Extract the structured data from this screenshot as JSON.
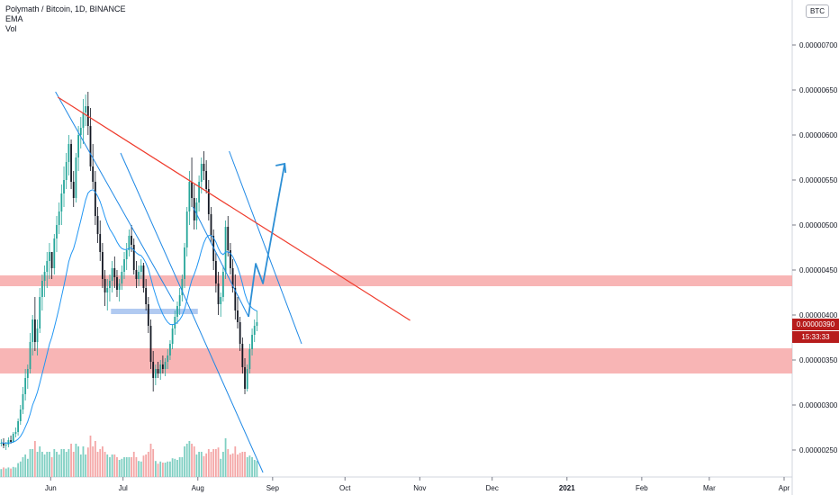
{
  "header": {
    "title": "Polymath / Bitcoin, 1D, BINANCE",
    "indicators": [
      "EMA",
      "Vol"
    ],
    "currency": "BTC"
  },
  "current_price": {
    "price": "0.00000390",
    "countdown": "15:33:33",
    "color": "#b71c1c"
  },
  "colors": {
    "up": "#26a69a",
    "down": "#131722",
    "vol_up": "#7fcfc2",
    "vol_down": "#f4a6a6",
    "ema": "#2196f3",
    "channel": "#1e88e5",
    "trendline": "#ef3b2c",
    "zone": "#f7a8a8",
    "support": "#a9c4ef",
    "arrow": "#2d8fd5"
  },
  "chart_data": {
    "type": "candlestick",
    "title": "Polymath / Bitcoin, 1D, BINANCE",
    "y_axis": {
      "ticks": [
        "0.00000250",
        "0.00000300",
        "0.00000350",
        "0.00000400",
        "0.00000450",
        "0.00000500",
        "0.00000550",
        "0.00000600",
        "0.00000650",
        "0.00000700"
      ],
      "tick_values": [
        250,
        300,
        350,
        400,
        450,
        500,
        550,
        600,
        650,
        700
      ],
      "unit_scale": "1e-8 BTC",
      "range": [
        225,
        745
      ]
    },
    "x_axis": {
      "ticks": [
        "Jun",
        "Jul",
        "Aug",
        "Sep",
        "Oct",
        "Nov",
        "Dec",
        "2021",
        "Feb",
        "Mar",
        "Apr"
      ],
      "tick_day": [
        21,
        51,
        82,
        113,
        143,
        174,
        204,
        235,
        266,
        294,
        325
      ]
    },
    "candles_ohlc": [
      [
        257,
        262,
        254,
        258
      ],
      [
        258,
        263,
        252,
        255
      ],
      [
        255,
        259,
        250,
        256
      ],
      [
        256,
        264,
        253,
        261
      ],
      [
        261,
        266,
        257,
        259
      ],
      [
        259,
        270,
        258,
        268
      ],
      [
        268,
        275,
        264,
        270
      ],
      [
        270,
        285,
        266,
        282
      ],
      [
        282,
        300,
        278,
        295
      ],
      [
        295,
        320,
        290,
        312
      ],
      [
        312,
        340,
        305,
        330
      ],
      [
        330,
        345,
        318,
        340
      ],
      [
        340,
        380,
        335,
        370
      ],
      [
        370,
        400,
        355,
        395
      ],
      [
        395,
        420,
        360,
        370
      ],
      [
        370,
        395,
        355,
        385
      ],
      [
        385,
        430,
        380,
        420
      ],
      [
        420,
        445,
        405,
        438
      ],
      [
        438,
        455,
        420,
        448
      ],
      [
        448,
        470,
        430,
        460
      ],
      [
        460,
        480,
        440,
        470
      ],
      [
        470,
        470,
        440,
        452
      ],
      [
        452,
        490,
        445,
        485
      ],
      [
        485,
        510,
        470,
        500
      ],
      [
        500,
        525,
        490,
        515
      ],
      [
        515,
        545,
        500,
        535
      ],
      [
        535,
        565,
        520,
        550
      ],
      [
        550,
        580,
        540,
        570
      ],
      [
        570,
        600,
        555,
        590
      ],
      [
        590,
        595,
        540,
        548
      ],
      [
        548,
        560,
        520,
        530
      ],
      [
        530,
        580,
        525,
        575
      ],
      [
        575,
        610,
        560,
        600
      ],
      [
        600,
        620,
        585,
        608
      ],
      [
        608,
        640,
        590,
        625
      ],
      [
        625,
        645,
        610,
        632
      ],
      [
        632,
        648,
        600,
        610
      ],
      [
        610,
        630,
        560,
        565
      ],
      [
        565,
        590,
        540,
        548
      ],
      [
        548,
        560,
        500,
        510
      ],
      [
        510,
        520,
        480,
        490
      ],
      [
        490,
        505,
        460,
        470
      ],
      [
        470,
        480,
        430,
        440
      ],
      [
        440,
        450,
        410,
        425
      ],
      [
        425,
        440,
        405,
        430
      ],
      [
        430,
        445,
        415,
        438
      ],
      [
        438,
        460,
        425,
        452
      ],
      [
        452,
        465,
        430,
        442
      ],
      [
        442,
        450,
        420,
        428
      ],
      [
        428,
        440,
        415,
        435
      ],
      [
        435,
        455,
        428,
        448
      ],
      [
        448,
        470,
        440,
        462
      ],
      [
        462,
        480,
        450,
        472
      ],
      [
        472,
        495,
        465,
        488
      ],
      [
        488,
        500,
        470,
        478
      ],
      [
        478,
        485,
        445,
        450
      ],
      [
        450,
        460,
        430,
        440
      ],
      [
        440,
        455,
        432,
        448
      ],
      [
        448,
        462,
        440,
        455
      ],
      [
        455,
        458,
        425,
        430
      ],
      [
        430,
        440,
        405,
        412
      ],
      [
        412,
        420,
        380,
        388
      ],
      [
        388,
        395,
        340,
        348
      ],
      [
        348,
        360,
        315,
        330
      ],
      [
        330,
        345,
        322,
        340
      ],
      [
        340,
        348,
        330,
        335
      ],
      [
        335,
        350,
        328,
        345
      ],
      [
        345,
        355,
        335,
        340
      ],
      [
        340,
        352,
        332,
        348
      ],
      [
        348,
        362,
        340,
        355
      ],
      [
        355,
        372,
        350,
        368
      ],
      [
        368,
        390,
        362,
        385
      ],
      [
        385,
        405,
        378,
        398
      ],
      [
        398,
        415,
        390,
        410
      ],
      [
        410,
        430,
        400,
        422
      ],
      [
        422,
        445,
        415,
        440
      ],
      [
        440,
        480,
        430,
        475
      ],
      [
        475,
        520,
        465,
        515
      ],
      [
        515,
        560,
        500,
        548
      ],
      [
        548,
        575,
        520,
        530
      ],
      [
        530,
        545,
        495,
        505
      ],
      [
        505,
        530,
        495,
        525
      ],
      [
        525,
        555,
        515,
        548
      ],
      [
        548,
        575,
        535,
        568
      ],
      [
        568,
        582,
        550,
        560
      ],
      [
        560,
        572,
        535,
        540
      ],
      [
        540,
        550,
        505,
        512
      ],
      [
        512,
        520,
        480,
        488
      ],
      [
        488,
        495,
        450,
        460
      ],
      [
        460,
        470,
        425,
        435
      ],
      [
        435,
        448,
        400,
        412
      ],
      [
        412,
        425,
        398,
        420
      ],
      [
        420,
        455,
        415,
        448
      ],
      [
        448,
        505,
        440,
        498
      ],
      [
        498,
        510,
        465,
        472
      ],
      [
        472,
        480,
        445,
        452
      ],
      [
        452,
        462,
        425,
        430
      ],
      [
        430,
        445,
        395,
        405
      ],
      [
        405,
        420,
        385,
        392
      ],
      [
        392,
        398,
        360,
        368
      ],
      [
        368,
        375,
        335,
        342
      ],
      [
        342,
        352,
        312,
        318
      ],
      [
        318,
        345,
        315,
        340
      ],
      [
        340,
        368,
        335,
        362
      ],
      [
        362,
        385,
        355,
        378
      ],
      [
        378,
        395,
        370,
        388
      ],
      [
        388,
        405,
        382,
        392
      ]
    ],
    "channels": [
      {
        "from": [
          23,
          648
        ],
        "to": [
          72,
          415
        ]
      },
      {
        "from": [
          50,
          580
        ],
        "to": [
          109,
          225
        ]
      },
      {
        "from": [
          95,
          582
        ],
        "to": [
          125,
          368
        ]
      },
      {
        "from": [
          80,
          520
        ],
        "to": [
          103,
          398
        ]
      }
    ],
    "trendline": {
      "from": [
        24,
        642
      ],
      "to": [
        170,
        394
      ]
    },
    "zones": [
      {
        "top": 444,
        "bottom": 432
      },
      {
        "top": 363,
        "bottom": 335
      }
    ],
    "support_bar": {
      "from_day": 46,
      "to_day": 82,
      "price": 404
    },
    "projection": [
      [
        103,
        398
      ],
      [
        106,
        457
      ],
      [
        109,
        435
      ],
      [
        118,
        568
      ]
    ]
  }
}
